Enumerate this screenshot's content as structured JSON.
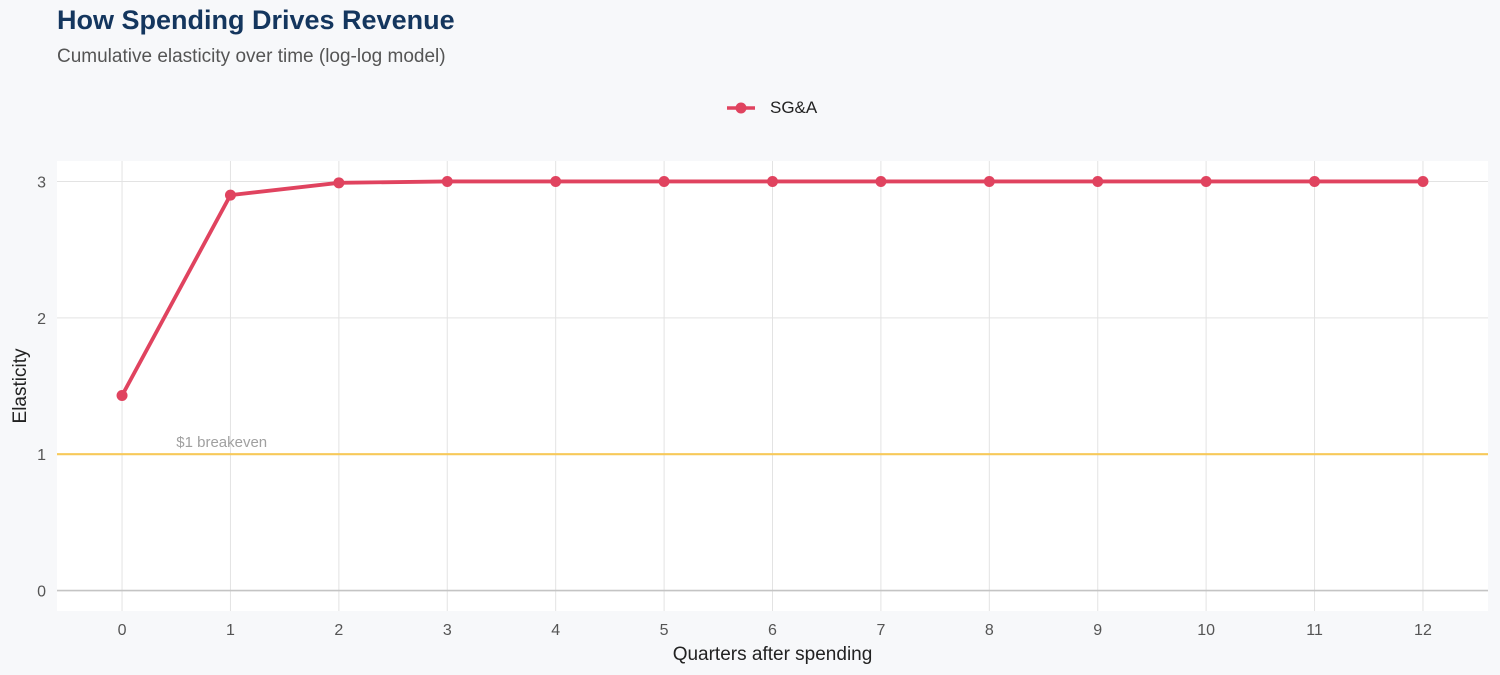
{
  "title": "How Spending Drives Revenue",
  "subtitle": "Cumulative elasticity over time (log-log model)",
  "colors": {
    "series": "#e0435f",
    "reference": "#f7c95a",
    "title": "#14365e",
    "grid": "#e3e3e3",
    "panel": "#ffffff",
    "background": "#f7f8fa"
  },
  "chart_data": {
    "type": "line",
    "title": "How Spending Drives Revenue",
    "subtitle": "Cumulative elasticity over time (log-log model)",
    "xlabel": "Quarters after spending",
    "ylabel": "Elasticity",
    "x": [
      0,
      1,
      2,
      3,
      4,
      5,
      6,
      7,
      8,
      9,
      10,
      11,
      12
    ],
    "series": [
      {
        "name": "SG&A",
        "values": [
          1.43,
          2.9,
          2.99,
          3.0,
          3.0,
          3.0,
          3.0,
          3.0,
          3.0,
          3.0,
          3.0,
          3.0,
          3.0
        ]
      }
    ],
    "xlim": [
      -0.6,
      12.6
    ],
    "ylim": [
      -0.15,
      3.15
    ],
    "xticks": [
      "0",
      "1",
      "2",
      "3",
      "4",
      "5",
      "6",
      "7",
      "8",
      "9",
      "10",
      "11",
      "12"
    ],
    "yticks": [
      "0",
      "1",
      "2",
      "3"
    ],
    "reference_line": {
      "y": 1,
      "label": "$1 breakeven"
    },
    "legend_position": "top-center",
    "grid": true
  }
}
